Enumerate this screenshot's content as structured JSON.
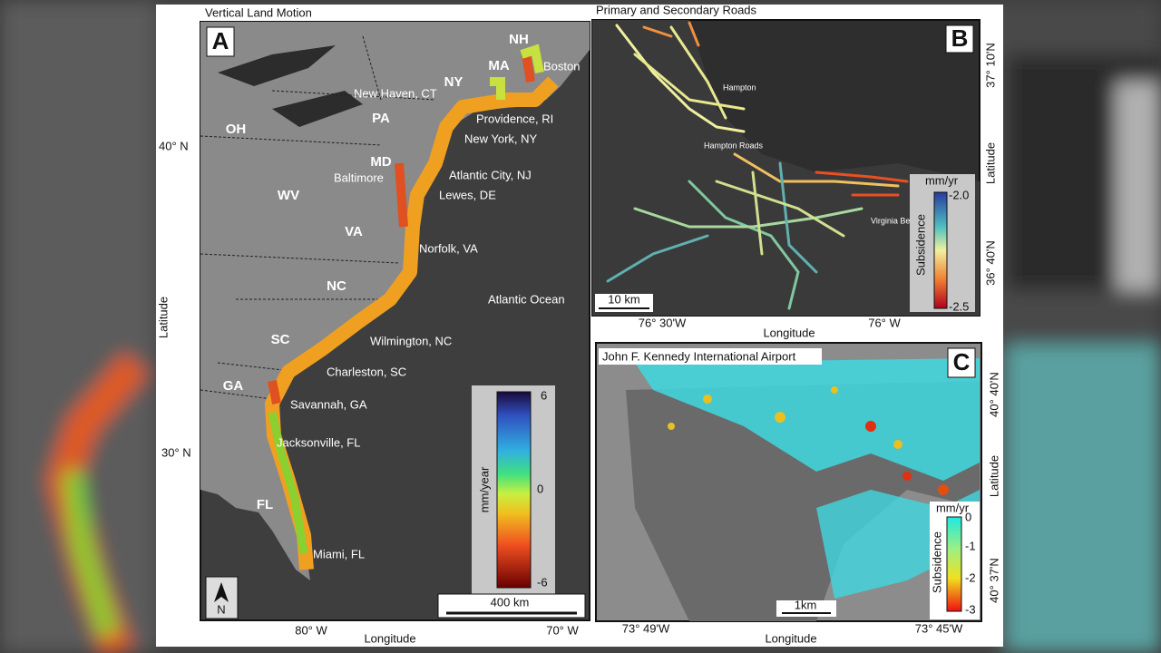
{
  "panel_a": {
    "title": "Vertical Land Motion",
    "letter": "A",
    "lat_labels": [
      "40° N",
      "30° N"
    ],
    "lat_title": "Latitude",
    "lon_labels": [
      "80° W",
      "70° W"
    ],
    "lon_title": "Longitude",
    "states": [
      "NH",
      "MA",
      "NY",
      "PA",
      "OH",
      "MD",
      "WV",
      "VA",
      "NC",
      "SC",
      "GA",
      "FL"
    ],
    "cities": [
      "Boston",
      "New Haven, CT",
      "Providence, RI",
      "New York, NY",
      "Baltimore",
      "Atlantic City, NJ",
      "Lewes, DE",
      "Norfolk, VA",
      "Wilmington, NC",
      "Charleston, SC",
      "Savannah, GA",
      "Jacksonville, FL",
      "Miami, FL"
    ],
    "ocean": "Atlantic Ocean",
    "colorbar": {
      "label": "mm/year",
      "ticks": [
        "6",
        "0",
        "-6"
      ]
    },
    "scale": "400 km",
    "north": "N"
  },
  "panel_b": {
    "title": "Primary and Secondary Roads",
    "letter": "B",
    "lat_labels": [
      "37° 10'N",
      "36° 40'N"
    ],
    "lat_title": "Latitude",
    "lon_labels": [
      "76° 30'W",
      "76° W"
    ],
    "lon_title": "Longitude",
    "places": [
      "Hampton",
      "Hampton Roads",
      "Virginia Beach"
    ],
    "colorbar": {
      "unit": "mm/yr",
      "label": "Subsidence",
      "ticks": [
        "-2.0",
        "-2.5"
      ]
    },
    "scale": "10 km"
  },
  "panel_c": {
    "title": "John F. Kennedy International Airport",
    "letter": "C",
    "lat_labels": [
      "40° 40'N",
      "40° 37'N"
    ],
    "lat_title": "Latitude",
    "lon_labels": [
      "73° 49'W",
      "73° 45'W"
    ],
    "lon_title": "Longitude",
    "colorbar": {
      "unit": "mm/yr",
      "label": "Subsidence",
      "ticks": [
        "0",
        "-1",
        "-2",
        "-3"
      ]
    },
    "scale": "1km"
  }
}
